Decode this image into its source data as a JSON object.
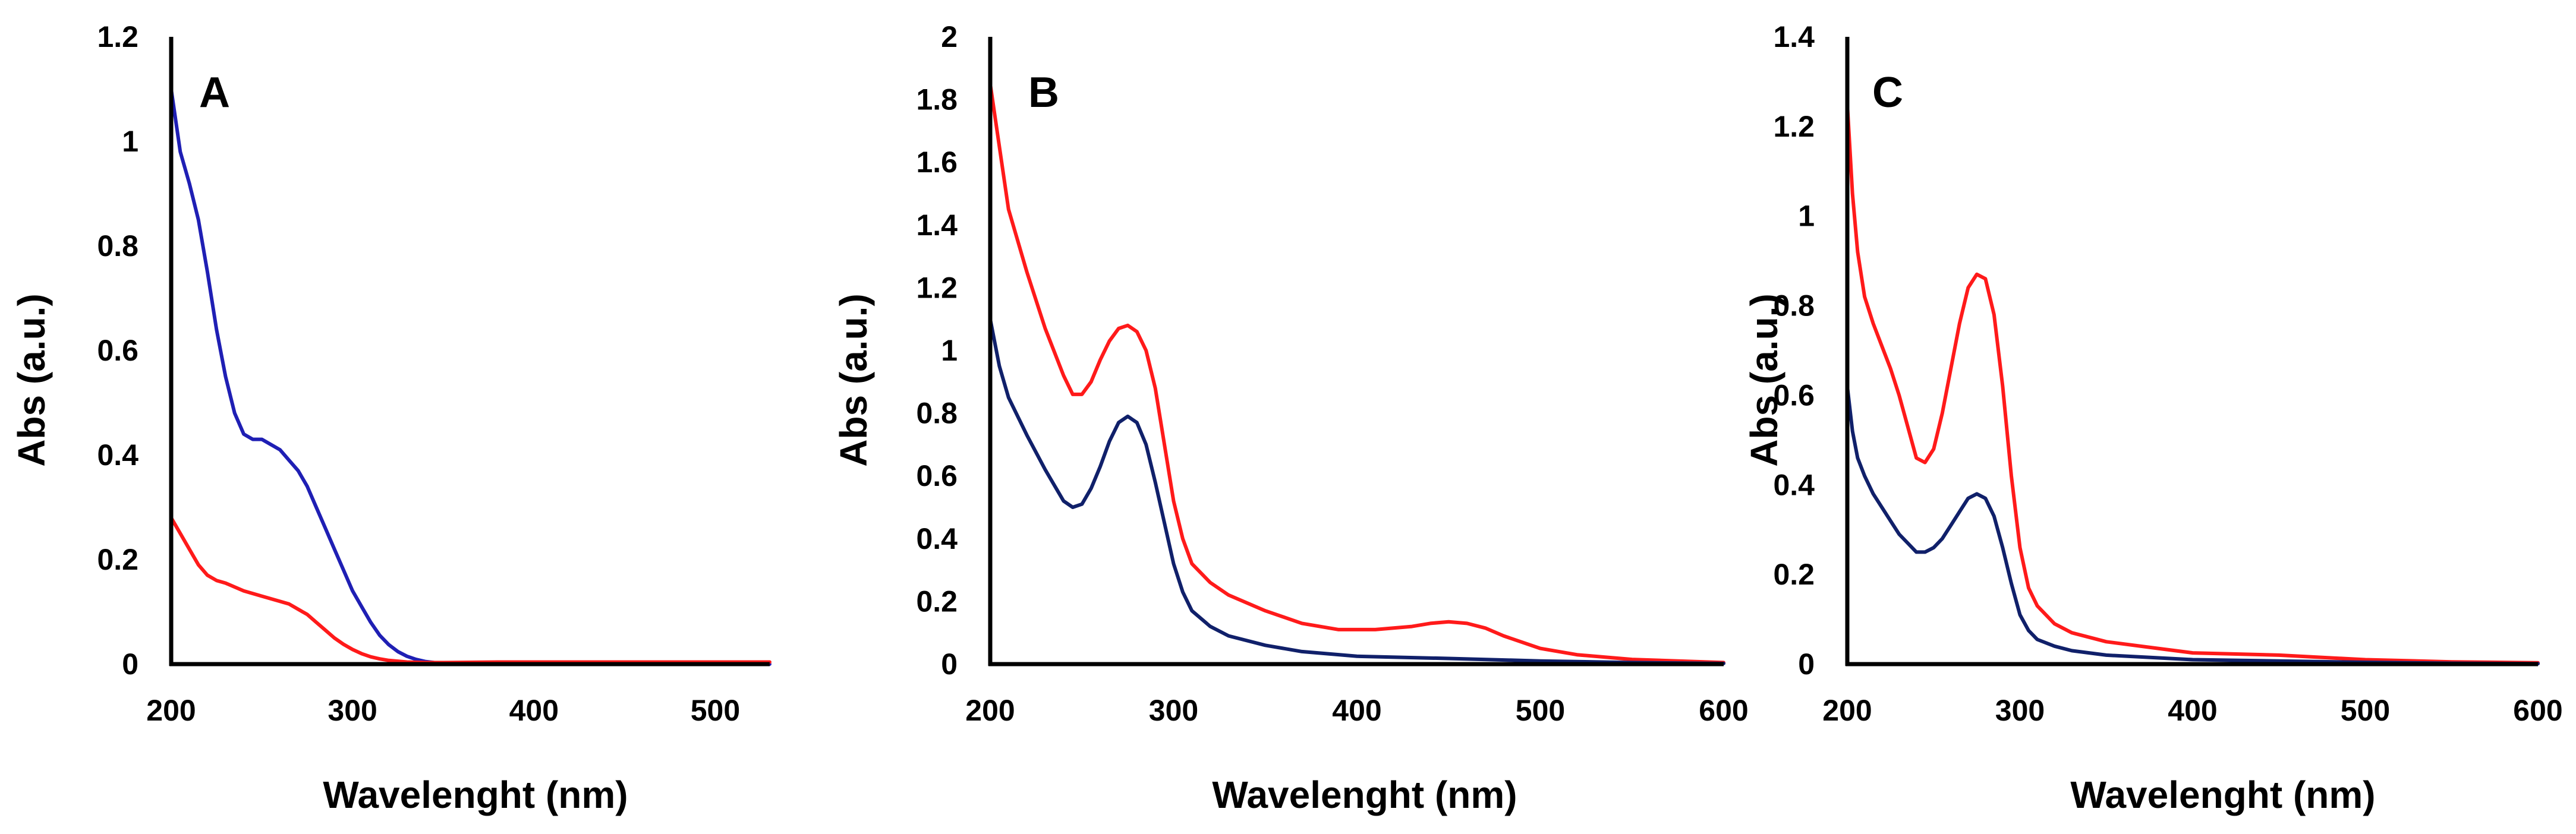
{
  "chart_data": [
    {
      "type": "line",
      "panel_label": "A",
      "xlabel": "Wavelenght (nm)",
      "ylabel": "Abs (a.u.)",
      "xlim": [
        200,
        530
      ],
      "ylim": [
        0,
        1.2
      ],
      "x_ticks": [
        "200",
        "300",
        "400",
        "500"
      ],
      "y_ticks": [
        "0",
        "0.2",
        "0.4",
        "0.6",
        "0.8",
        "1",
        "1.2"
      ],
      "series": [
        {
          "name": "blue",
          "color": "#1f1fb4",
          "x": [
            200,
            205,
            210,
            215,
            220,
            225,
            230,
            235,
            240,
            245,
            250,
            255,
            260,
            265,
            270,
            275,
            280,
            285,
            290,
            295,
            300,
            305,
            310,
            315,
            320,
            325,
            330,
            335,
            340,
            345,
            350,
            360,
            380,
            400,
            450,
            500,
            530
          ],
          "values": [
            1.1,
            0.98,
            0.92,
            0.85,
            0.75,
            0.64,
            0.55,
            0.48,
            0.44,
            0.43,
            0.43,
            0.42,
            0.41,
            0.39,
            0.37,
            0.34,
            0.3,
            0.26,
            0.22,
            0.18,
            0.14,
            0.11,
            0.08,
            0.055,
            0.037,
            0.024,
            0.015,
            0.009,
            0.005,
            0.003,
            0.002,
            0.001,
            0.0,
            0.0,
            0.0,
            0.0,
            0.0
          ]
        },
        {
          "name": "red",
          "color": "#ff1a1a",
          "x": [
            200,
            205,
            210,
            215,
            220,
            225,
            230,
            240,
            250,
            260,
            265,
            270,
            275,
            280,
            285,
            290,
            295,
            300,
            305,
            310,
            315,
            320,
            330,
            340,
            350,
            380,
            400,
            450,
            500,
            530
          ],
          "values": [
            0.28,
            0.25,
            0.22,
            0.19,
            0.17,
            0.16,
            0.155,
            0.14,
            0.13,
            0.12,
            0.115,
            0.105,
            0.095,
            0.08,
            0.065,
            0.05,
            0.038,
            0.028,
            0.02,
            0.014,
            0.01,
            0.007,
            0.004,
            0.003,
            0.003,
            0.004,
            0.004,
            0.004,
            0.004,
            0.004
          ]
        }
      ]
    },
    {
      "type": "line",
      "panel_label": "B",
      "xlabel": "Wavelenght (nm)",
      "ylabel": "Abs (a.u.)",
      "xlim": [
        200,
        600
      ],
      "ylim": [
        0,
        2
      ],
      "x_ticks": [
        "200",
        "300",
        "400",
        "500",
        "600"
      ],
      "y_ticks": [
        "0",
        "0.2",
        "0.4",
        "0.6",
        "0.8",
        "1",
        "1.2",
        "1.4",
        "1.6",
        "1.8",
        "2"
      ],
      "series": [
        {
          "name": "red",
          "color": "#ff1a1a",
          "x": [
            200,
            205,
            210,
            220,
            230,
            240,
            245,
            250,
            255,
            260,
            265,
            270,
            275,
            280,
            285,
            290,
            295,
            300,
            305,
            310,
            320,
            330,
            350,
            370,
            390,
            400,
            410,
            420,
            430,
            440,
            450,
            460,
            470,
            480,
            500,
            520,
            550,
            600
          ],
          "values": [
            1.85,
            1.65,
            1.45,
            1.25,
            1.07,
            0.92,
            0.86,
            0.86,
            0.9,
            0.97,
            1.03,
            1.07,
            1.08,
            1.06,
            1.0,
            0.88,
            0.7,
            0.52,
            0.4,
            0.32,
            0.26,
            0.22,
            0.17,
            0.13,
            0.11,
            0.11,
            0.11,
            0.115,
            0.12,
            0.13,
            0.135,
            0.13,
            0.115,
            0.09,
            0.05,
            0.03,
            0.015,
            0.005
          ]
        },
        {
          "name": "navy",
          "color": "#10206a",
          "x": [
            200,
            205,
            210,
            220,
            230,
            240,
            245,
            250,
            255,
            260,
            265,
            270,
            275,
            280,
            285,
            290,
            295,
            300,
            305,
            310,
            320,
            330,
            350,
            370,
            400,
            450,
            500,
            550,
            600
          ],
          "values": [
            1.1,
            0.95,
            0.85,
            0.73,
            0.62,
            0.52,
            0.5,
            0.51,
            0.56,
            0.63,
            0.71,
            0.77,
            0.79,
            0.77,
            0.7,
            0.58,
            0.45,
            0.32,
            0.23,
            0.17,
            0.12,
            0.09,
            0.06,
            0.04,
            0.025,
            0.018,
            0.01,
            0.005,
            0.002
          ]
        }
      ]
    },
    {
      "type": "line",
      "panel_label": "C",
      "xlabel": "Wavelenght (nm)",
      "ylabel": "Abs (a.u.)",
      "xlim": [
        200,
        600
      ],
      "ylim": [
        0,
        1.4
      ],
      "x_ticks": [
        "200",
        "300",
        "400",
        "500",
        "600"
      ],
      "y_ticks": [
        "0",
        "0.2",
        "0.4",
        "0.6",
        "0.8",
        "1",
        "1.2",
        "1.4"
      ],
      "series": [
        {
          "name": "red",
          "color": "#ff1a1a",
          "x": [
            200,
            203,
            206,
            210,
            215,
            220,
            225,
            230,
            235,
            240,
            245,
            250,
            255,
            260,
            265,
            270,
            275,
            280,
            285,
            290,
            295,
            300,
            305,
            310,
            320,
            330,
            350,
            380,
            400,
            450,
            500,
            550,
            600
          ],
          "values": [
            1.25,
            1.05,
            0.92,
            0.82,
            0.76,
            0.71,
            0.66,
            0.6,
            0.53,
            0.46,
            0.45,
            0.48,
            0.56,
            0.66,
            0.76,
            0.84,
            0.87,
            0.86,
            0.78,
            0.62,
            0.42,
            0.26,
            0.17,
            0.13,
            0.09,
            0.07,
            0.05,
            0.035,
            0.025,
            0.02,
            0.01,
            0.005,
            0.003
          ]
        },
        {
          "name": "navy",
          "color": "#10206a",
          "x": [
            200,
            203,
            206,
            210,
            215,
            220,
            225,
            230,
            235,
            240,
            245,
            250,
            255,
            260,
            265,
            270,
            275,
            280,
            285,
            290,
            295,
            300,
            305,
            310,
            320,
            330,
            350,
            400,
            450,
            500,
            550,
            600
          ],
          "values": [
            0.62,
            0.52,
            0.46,
            0.42,
            0.38,
            0.35,
            0.32,
            0.29,
            0.27,
            0.25,
            0.25,
            0.26,
            0.28,
            0.31,
            0.34,
            0.37,
            0.38,
            0.37,
            0.33,
            0.26,
            0.18,
            0.11,
            0.075,
            0.055,
            0.04,
            0.03,
            0.02,
            0.01,
            0.007,
            0.004,
            0.002,
            0.001
          ]
        }
      ]
    }
  ]
}
